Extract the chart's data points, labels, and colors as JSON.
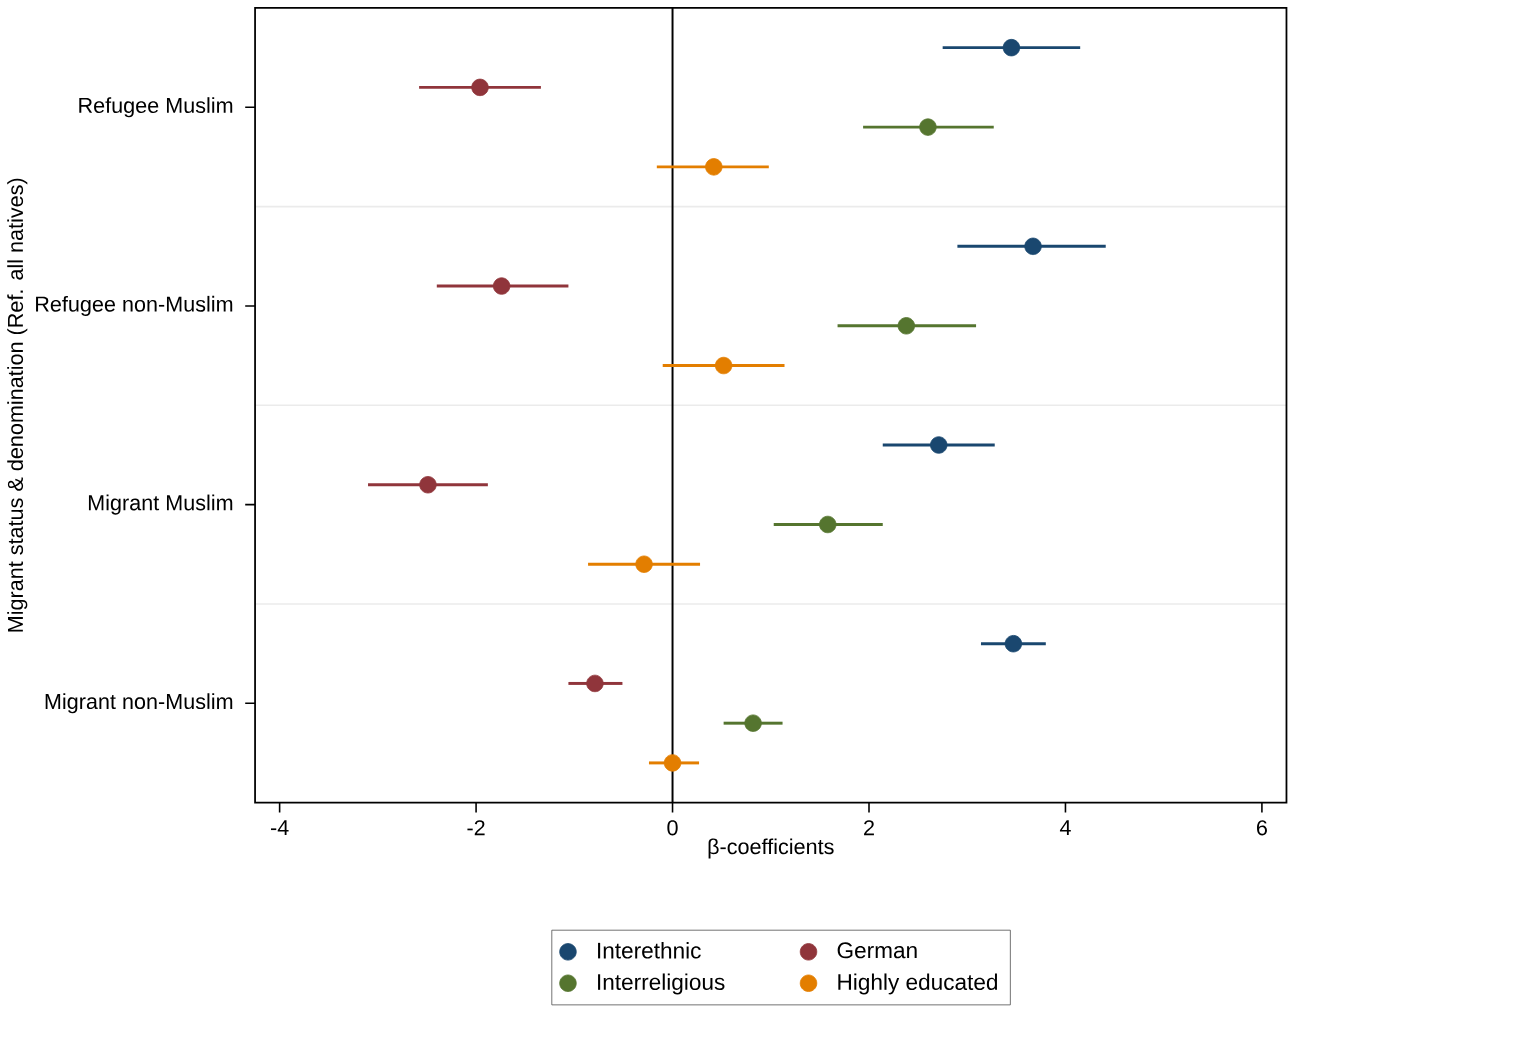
{
  "chart_data": {
    "type": "scatter",
    "orientation": "horizontal",
    "xlabel": "β-coefficients",
    "ylabel": "Migrant status & denomination (Ref. all natives)",
    "categories": [
      "Refugee Muslim",
      "Refugee non-Muslim",
      "Migrant Muslim",
      "Migrant non-Muslim"
    ],
    "xlim": [
      -4.25,
      6.25
    ],
    "xticks": [
      -4,
      -2,
      0,
      2,
      4,
      6
    ],
    "grid": "y",
    "legend": "bottom",
    "marker": "circle",
    "ref_lines": [
      {
        "axis": "x",
        "value": 0,
        "color": "#000000"
      }
    ],
    "series": [
      {
        "name": "Interethnic",
        "color": "#1a476f",
        "values": [
          3.45,
          3.67,
          2.71,
          3.47
        ],
        "errors": [
          [
            2.75,
            4.15
          ],
          [
            2.9,
            4.41
          ],
          [
            2.14,
            3.28
          ],
          [
            3.14,
            3.8
          ]
        ]
      },
      {
        "name": "German",
        "color": "#90353b",
        "values": [
          -1.96,
          -1.74,
          -2.49,
          -0.79
        ],
        "errors": [
          [
            -2.58,
            -1.34
          ],
          [
            -2.4,
            -1.06
          ],
          [
            -3.1,
            -1.88
          ],
          [
            -1.06,
            -0.51
          ]
        ]
      },
      {
        "name": "Interreligious",
        "color": "#55752f",
        "values": [
          2.6,
          2.38,
          1.58,
          0.82
        ],
        "errors": [
          [
            1.94,
            3.27
          ],
          [
            1.68,
            3.09
          ],
          [
            1.03,
            2.14
          ],
          [
            0.52,
            1.12
          ]
        ]
      },
      {
        "name": "Highly educated",
        "color": "#e37e00",
        "values": [
          0.42,
          0.52,
          -0.29,
          0.0
        ],
        "errors": [
          [
            -0.16,
            0.98
          ],
          [
            -0.1,
            1.14
          ],
          [
            -0.86,
            0.28
          ],
          [
            -0.24,
            0.27
          ]
        ]
      }
    ]
  }
}
